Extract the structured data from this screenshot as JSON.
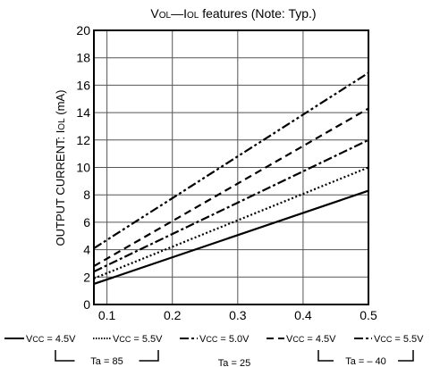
{
  "chart_data": {
    "type": "line",
    "title_parts": {
      "v": "V",
      "ol": "OL",
      "dash": "—",
      "i": "I",
      "ol2": "OL",
      "rest": " features (Note: Typ.)"
    },
    "ylabel_parts": {
      "main": "OUTPUT CURRENT: I",
      "sub": "OL",
      "unit": " (mA)"
    },
    "xlim": [
      0.08,
      0.5
    ],
    "ylim": [
      0,
      20
    ],
    "xticks": [
      "0.1",
      "0.2",
      "0.3",
      "0.4",
      "0.5"
    ],
    "xtick_values": [
      0.1,
      0.2,
      0.3,
      0.4,
      0.5
    ],
    "yticks": [
      "0",
      "2",
      "4",
      "6",
      "8",
      "10",
      "12",
      "14",
      "16",
      "18",
      "20"
    ],
    "ytick_values": [
      0,
      2,
      4,
      6,
      8,
      10,
      12,
      14,
      16,
      18,
      20
    ],
    "grid": true,
    "series": [
      {
        "name": "VCC = 4.5V, Ta = 85",
        "style": "solid",
        "x": [
          0.08,
          0.5
        ],
        "values": [
          1.5,
          8.3
        ]
      },
      {
        "name": "VCC = 5.5V, Ta = 85",
        "style": "dotted",
        "x": [
          0.08,
          0.5
        ],
        "values": [
          1.9,
          10.0
        ]
      },
      {
        "name": "VCC = 5.0V, Ta = 25",
        "style": "dashdot",
        "x": [
          0.08,
          0.5
        ],
        "values": [
          2.4,
          12.0
        ]
      },
      {
        "name": "VCC = 4.5V, Ta = -40",
        "style": "dashed",
        "x": [
          0.08,
          0.5
        ],
        "values": [
          2.8,
          14.3
        ]
      },
      {
        "name": "VCC = 5.5V, Ta = -40",
        "style": "dashdotdot",
        "x": [
          0.08,
          0.5
        ],
        "values": [
          4.1,
          16.9
        ]
      }
    ],
    "legend": [
      {
        "pre": "V",
        "sub": "CC",
        "post": " = 4.5V",
        "style": "solid"
      },
      {
        "pre": "V",
        "sub": "CC",
        "post": " = 5.5V",
        "style": "dotted"
      },
      {
        "pre": "V",
        "sub": "CC",
        "post": " = 5.0V",
        "style": "dashdot"
      },
      {
        "pre": "V",
        "sub": "CC",
        "post": " = 4.5V",
        "style": "dashed"
      },
      {
        "pre": "V",
        "sub": "CC",
        "post": " = 5.5V",
        "style": "dashdotdot"
      }
    ],
    "temp_groups": [
      {
        "label": "Ta = 85"
      },
      {
        "label": "Ta = 25"
      },
      {
        "label": "Ta = – 40"
      }
    ]
  }
}
